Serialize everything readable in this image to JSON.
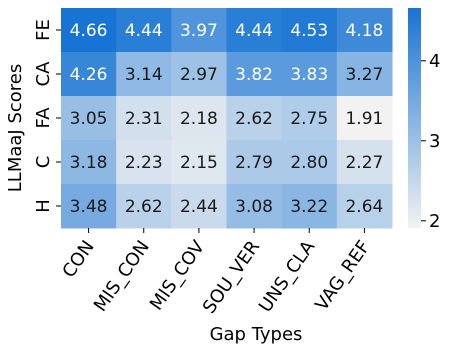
{
  "chart_data": {
    "type": "heatmap",
    "title": "",
    "xlabel": "Gap Types",
    "ylabel": "LLMaaJ Scores",
    "x_categories": [
      "CON",
      "MIS_CON",
      "MIS_COV",
      "SOU_VER",
      "UNS_CLA",
      "VAG_REF"
    ],
    "y_categories": [
      "FE",
      "CA",
      "FA",
      "C",
      "H"
    ],
    "values": [
      [
        4.66,
        4.44,
        3.97,
        4.44,
        4.53,
        4.18
      ],
      [
        4.26,
        3.14,
        2.97,
        3.82,
        3.83,
        3.27
      ],
      [
        3.05,
        2.31,
        2.18,
        2.62,
        2.75,
        1.91
      ],
      [
        3.18,
        2.23,
        2.15,
        2.79,
        2.8,
        2.27
      ],
      [
        3.48,
        2.62,
        2.44,
        3.08,
        3.22,
        2.64
      ]
    ],
    "colorbar": {
      "min": 1.91,
      "max": 4.66,
      "ticks": [
        2,
        3,
        4
      ],
      "low_color": "#f2f2f2",
      "high_color": "#1874d4"
    },
    "grid": false,
    "legend": "colorbar-right"
  }
}
